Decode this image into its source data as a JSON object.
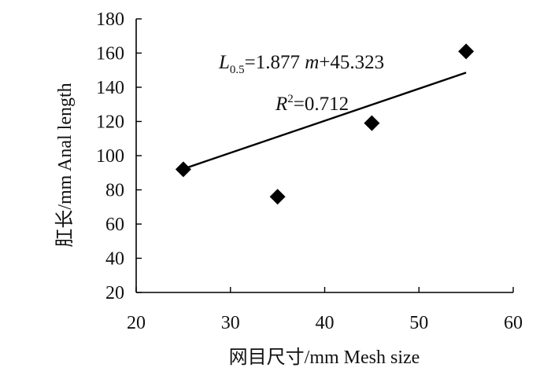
{
  "chart_data": {
    "type": "scatter",
    "xlabel": "网目尺寸/mm Mesh size",
    "ylabel": "肛长/mm Anal length",
    "xlim": [
      20,
      60
    ],
    "ylim": [
      20,
      180
    ],
    "xticks": [
      "20",
      "30",
      "40",
      "50",
      "60"
    ],
    "yticks": [
      "20",
      "40",
      "60",
      "80",
      "100",
      "120",
      "140",
      "160",
      "180"
    ],
    "grid": false,
    "series": [
      {
        "marker": "diamond",
        "color": "#000000",
        "points": [
          {
            "x": 25,
            "y": 92
          },
          {
            "x": 35,
            "y": 76
          },
          {
            "x": 45,
            "y": 119
          },
          {
            "x": 55,
            "y": 161
          }
        ]
      }
    ],
    "trendline": {
      "type": "linear",
      "slope": 1.877,
      "intercept": 45.323,
      "x_range": [
        25,
        55
      ]
    },
    "equation": {
      "lhs": "L",
      "lhs_sub": "0.5",
      "rhs_before": "=1.877 ",
      "rhs_var": "m",
      "rhs_after": "+45.323"
    },
    "r_squared": {
      "symbol": "R",
      "exp": "2",
      "value": "=0.712"
    }
  }
}
